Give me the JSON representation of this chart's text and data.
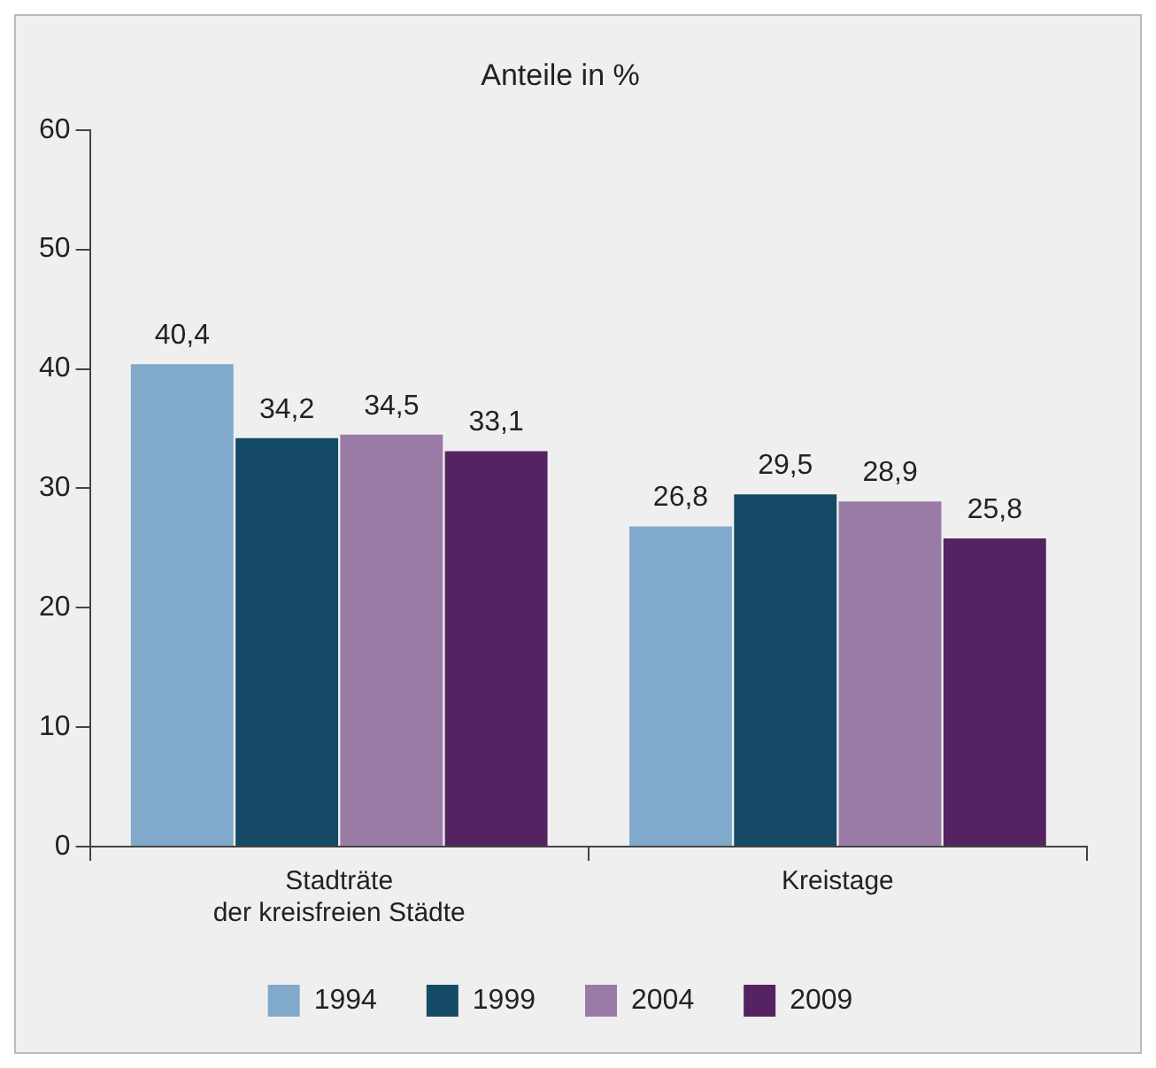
{
  "chart_data": {
    "type": "bar",
    "title": "Anteile in %",
    "categories": [
      "Stadträte\nder kreisfreien Städte",
      "Kreistage"
    ],
    "series": [
      {
        "name": "1994",
        "color": "#80a9cb",
        "values": [
          40.4,
          26.8
        ],
        "value_labels": [
          "40,4",
          "26,8"
        ]
      },
      {
        "name": "1999",
        "color": "#154a66",
        "values": [
          34.2,
          29.5
        ],
        "value_labels": [
          "34,2",
          "29,5"
        ]
      },
      {
        "name": "2004",
        "color": "#9a7ba6",
        "values": [
          34.5,
          28.9
        ],
        "value_labels": [
          "34,5",
          "28,9"
        ]
      },
      {
        "name": "2009",
        "color": "#552262",
        "values": [
          33.1,
          25.8
        ],
        "value_labels": [
          "33,1",
          "25,8"
        ]
      }
    ],
    "ylim": [
      0,
      60
    ],
    "yticks": [
      0,
      10,
      20,
      30,
      40,
      50,
      60
    ],
    "grid": false,
    "legend": "bottom"
  }
}
